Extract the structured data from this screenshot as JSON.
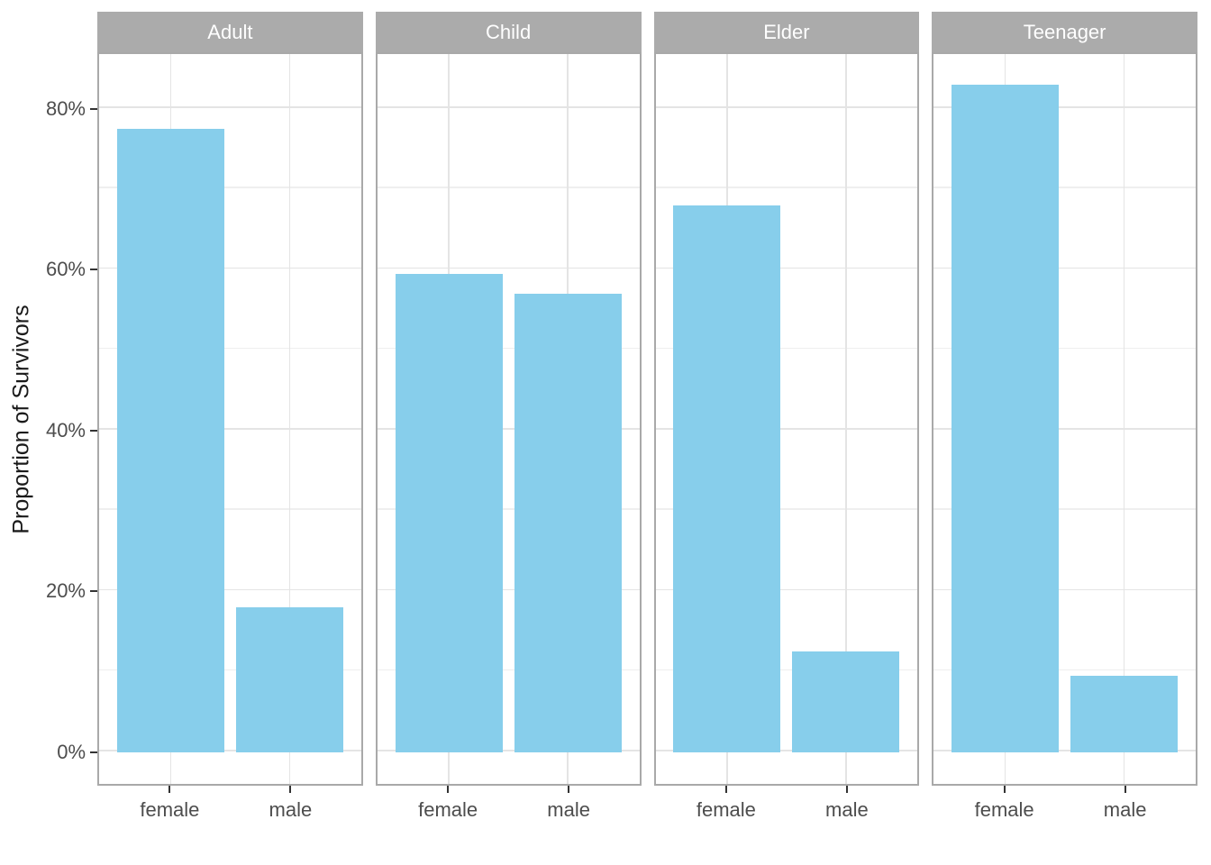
{
  "chart_data": {
    "type": "bar",
    "title": "",
    "xlabel": "",
    "ylabel": "Proportion of Survivors",
    "facet_variable_values": [
      "Adult",
      "Child",
      "Elder",
      "Teenager"
    ],
    "categories": [
      "female",
      "male"
    ],
    "facets": [
      {
        "label": "Adult",
        "values": [
          77.5,
          18.0
        ]
      },
      {
        "label": "Child",
        "values": [
          59.5,
          57.0
        ]
      },
      {
        "label": "Elder",
        "values": [
          68.0,
          12.5
        ]
      },
      {
        "label": "Teenager",
        "values": [
          83.0,
          9.5
        ]
      }
    ],
    "value_unit": "percent",
    "y_ticks": [
      {
        "value": 0,
        "label": "0%"
      },
      {
        "value": 20,
        "label": "20%"
      },
      {
        "value": 40,
        "label": "40%"
      },
      {
        "value": 60,
        "label": "60%"
      },
      {
        "value": 80,
        "label": "80%"
      }
    ],
    "y_minor_ticks": [
      10,
      30,
      50,
      70
    ],
    "ylim": [
      -4.15,
      87.05
    ],
    "grid": true,
    "legend": "none",
    "bar_width_fraction": 0.9
  },
  "colors": {
    "bar": "#87CEEB",
    "strip_bg": "#ABABAB",
    "strip_text": "#FFFFFF",
    "panel_bg": "#FFFFFF",
    "panel_border": "#A9A9A9",
    "grid_major": "#E4E4E4",
    "grid_minor": "#EFEFEF",
    "axis_tick": "#333333",
    "tick_label": "#4D4D4D",
    "axis_title": "#1A1A1A",
    "background": "#FFFFFF"
  }
}
